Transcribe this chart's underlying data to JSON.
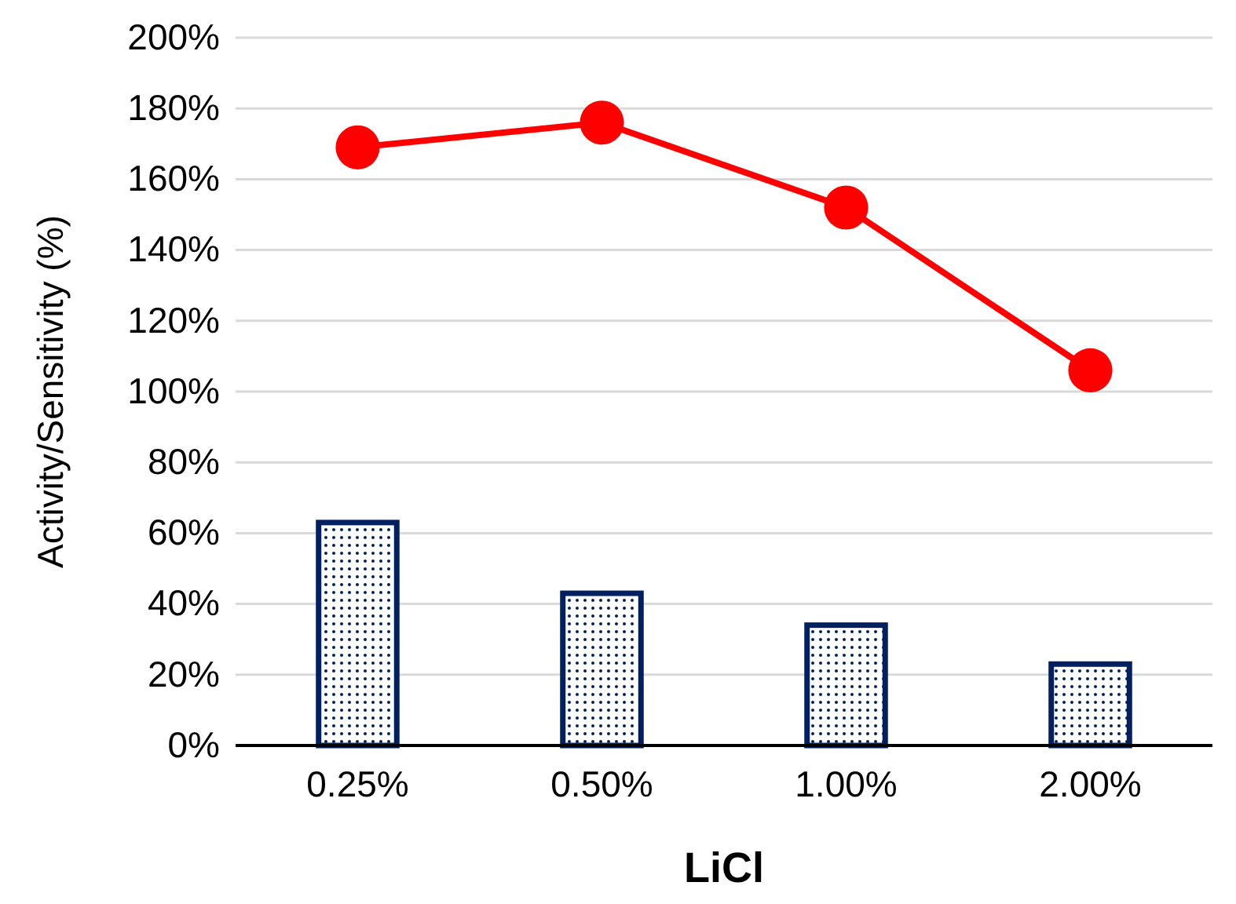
{
  "chart_data": {
    "type": "bar",
    "xlabel": "LiCl",
    "ylabel": "Activity/Sensitivity (%)",
    "categories": [
      "0.25%",
      "0.50%",
      "1.00%",
      "2.00%"
    ],
    "series": [
      {
        "color": "#002060",
        "values": [
          63,
          43,
          34,
          23
        ]
      },
      {
        "type": "line",
        "color": "#ff0000",
        "values": [
          169,
          176,
          152,
          106
        ]
      }
    ],
    "ylim": [
      0,
      200
    ],
    "yticks": [
      {
        "value": 0,
        "label": "0%"
      },
      {
        "value": 20,
        "label": "20%"
      },
      {
        "value": 40,
        "label": "40%"
      },
      {
        "value": 60,
        "label": "60%"
      },
      {
        "value": 80,
        "label": "80%"
      },
      {
        "value": 100,
        "label": "100%"
      },
      {
        "value": 120,
        "label": "120%"
      },
      {
        "value": 140,
        "label": "140%"
      },
      {
        "value": 160,
        "label": "160%"
      },
      {
        "value": 180,
        "label": "180%"
      },
      {
        "value": 200,
        "label": "200%"
      }
    ],
    "grid": "y",
    "marker": "circle",
    "line_style": "solid"
  }
}
